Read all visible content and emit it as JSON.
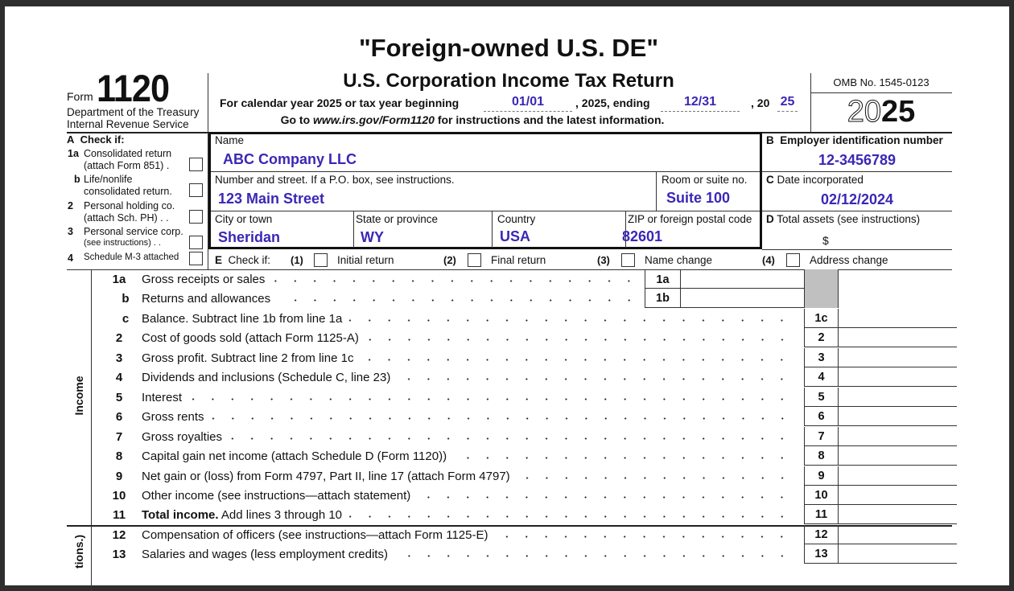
{
  "header": {
    "top_title": "\"Foreign-owned U.S. DE\"",
    "form_word": "Form",
    "form_number": "1120",
    "dept1": "Department of the Treasury",
    "dept2": "Internal Revenue Service",
    "title": "U.S. Corporation Income Tax Return",
    "year_line_prefix": "For calendar year 2025 or tax year beginning",
    "begin_value": "01/01",
    "year_mid": ", 2025, ending",
    "end_value": "12/31",
    "year_suffix": ", 20",
    "year_value": "25",
    "goto_prefix": "Go to ",
    "goto_url": "www.irs.gov/Form1120",
    "goto_suffix": " for instructions and the latest information.",
    "omb": "OMB No. 1545-0123",
    "year_outline": "20",
    "year_bold": "25"
  },
  "check_a": {
    "title_letter": "A",
    "title": "Check if:",
    "items": [
      {
        "num": "1a",
        "line1": "Consolidated return",
        "line2": "(attach Form 851)  ."
      },
      {
        "num": "b",
        "line1": "Life/nonlife",
        "line2": "consolidated return."
      },
      {
        "num": "2",
        "line1": "Personal holding co.",
        "line2": "(attach Sch. PH) .  ."
      },
      {
        "num": "3",
        "line1": "Personal service corp.",
        "line2": "(see instructions)  .  ."
      },
      {
        "num": "4",
        "line1": "Schedule M-3 attached",
        "line2": ""
      }
    ]
  },
  "entity": {
    "name_label": "Name",
    "name_value": "ABC Company LLC",
    "street_label": "Number and street. If a P.O. box, see instructions.",
    "street_value": "123 Main Street",
    "room_label": "Room or suite no.",
    "room_value": "Suite 100",
    "city_label": "City or town",
    "city_value": "Sheridan",
    "state_label": "State or province",
    "state_value": "WY",
    "country_label": "Country",
    "country_value": "USA",
    "zip_label": "ZIP or foreign postal code",
    "zip_value": "82601"
  },
  "right_col": {
    "ein_letter": "B",
    "ein_label": "Employer identification number",
    "ein_value": "12-3456789",
    "date_letter": "C",
    "date_label": "Date incorporated",
    "date_value": "02/12/2024",
    "assets_letter": "D",
    "assets_label": "Total assets (see instructions)",
    "assets_currency": "$"
  },
  "check_e": {
    "letter": "E",
    "label": "Check if:",
    "options": [
      {
        "num": "(1)",
        "label": "Initial return"
      },
      {
        "num": "(2)",
        "label": "Final return"
      },
      {
        "num": "(3)",
        "label": "Name change"
      },
      {
        "num": "(4)",
        "label": "Address change"
      }
    ]
  },
  "sections": {
    "income": "Income",
    "deductions_partial": "tions.)"
  },
  "lines": [
    {
      "num": "1a",
      "label": "Gross receipts or sales",
      "box": "1a",
      "inner": true
    },
    {
      "num": "b",
      "label": "Returns and allowances",
      "box": "1b",
      "inner": true
    },
    {
      "num": "c",
      "label": "Balance. Subtract line 1b from line 1a",
      "box": "1c"
    },
    {
      "num": "2",
      "label": "Cost of goods sold (attach Form 1125-A)",
      "box": "2"
    },
    {
      "num": "3",
      "label": "Gross profit. Subtract line 2 from line 1c",
      "box": "3"
    },
    {
      "num": "4",
      "label": "Dividends and inclusions (Schedule C, line 23)",
      "box": "4"
    },
    {
      "num": "5",
      "label": "Interest",
      "box": "5"
    },
    {
      "num": "6",
      "label": "Gross rents",
      "box": "6"
    },
    {
      "num": "7",
      "label": "Gross royalties",
      "box": "7"
    },
    {
      "num": "8",
      "label": "Capital gain net income (attach Schedule D (Form 1120))",
      "box": "8"
    },
    {
      "num": "9",
      "label": "Net gain or (loss) from Form 4797, Part II, line 17 (attach Form 4797)",
      "box": "9"
    },
    {
      "num": "10",
      "label": "Other income (see instructions—attach statement)",
      "box": "10"
    },
    {
      "num": "11",
      "bold": "Total income.",
      "label": " Add lines 3 through 10",
      "box": "11"
    },
    {
      "num": "12",
      "label": "Compensation of officers (see instructions—attach Form 1125-E)",
      "box": "12"
    },
    {
      "num": "13",
      "label": "Salaries and wages (less employment credits)",
      "box": "13"
    }
  ],
  "colors": {
    "fill_text": "#3a27b5",
    "shaded_cell": "#c0c0c0",
    "background": "#2e2e2e"
  }
}
